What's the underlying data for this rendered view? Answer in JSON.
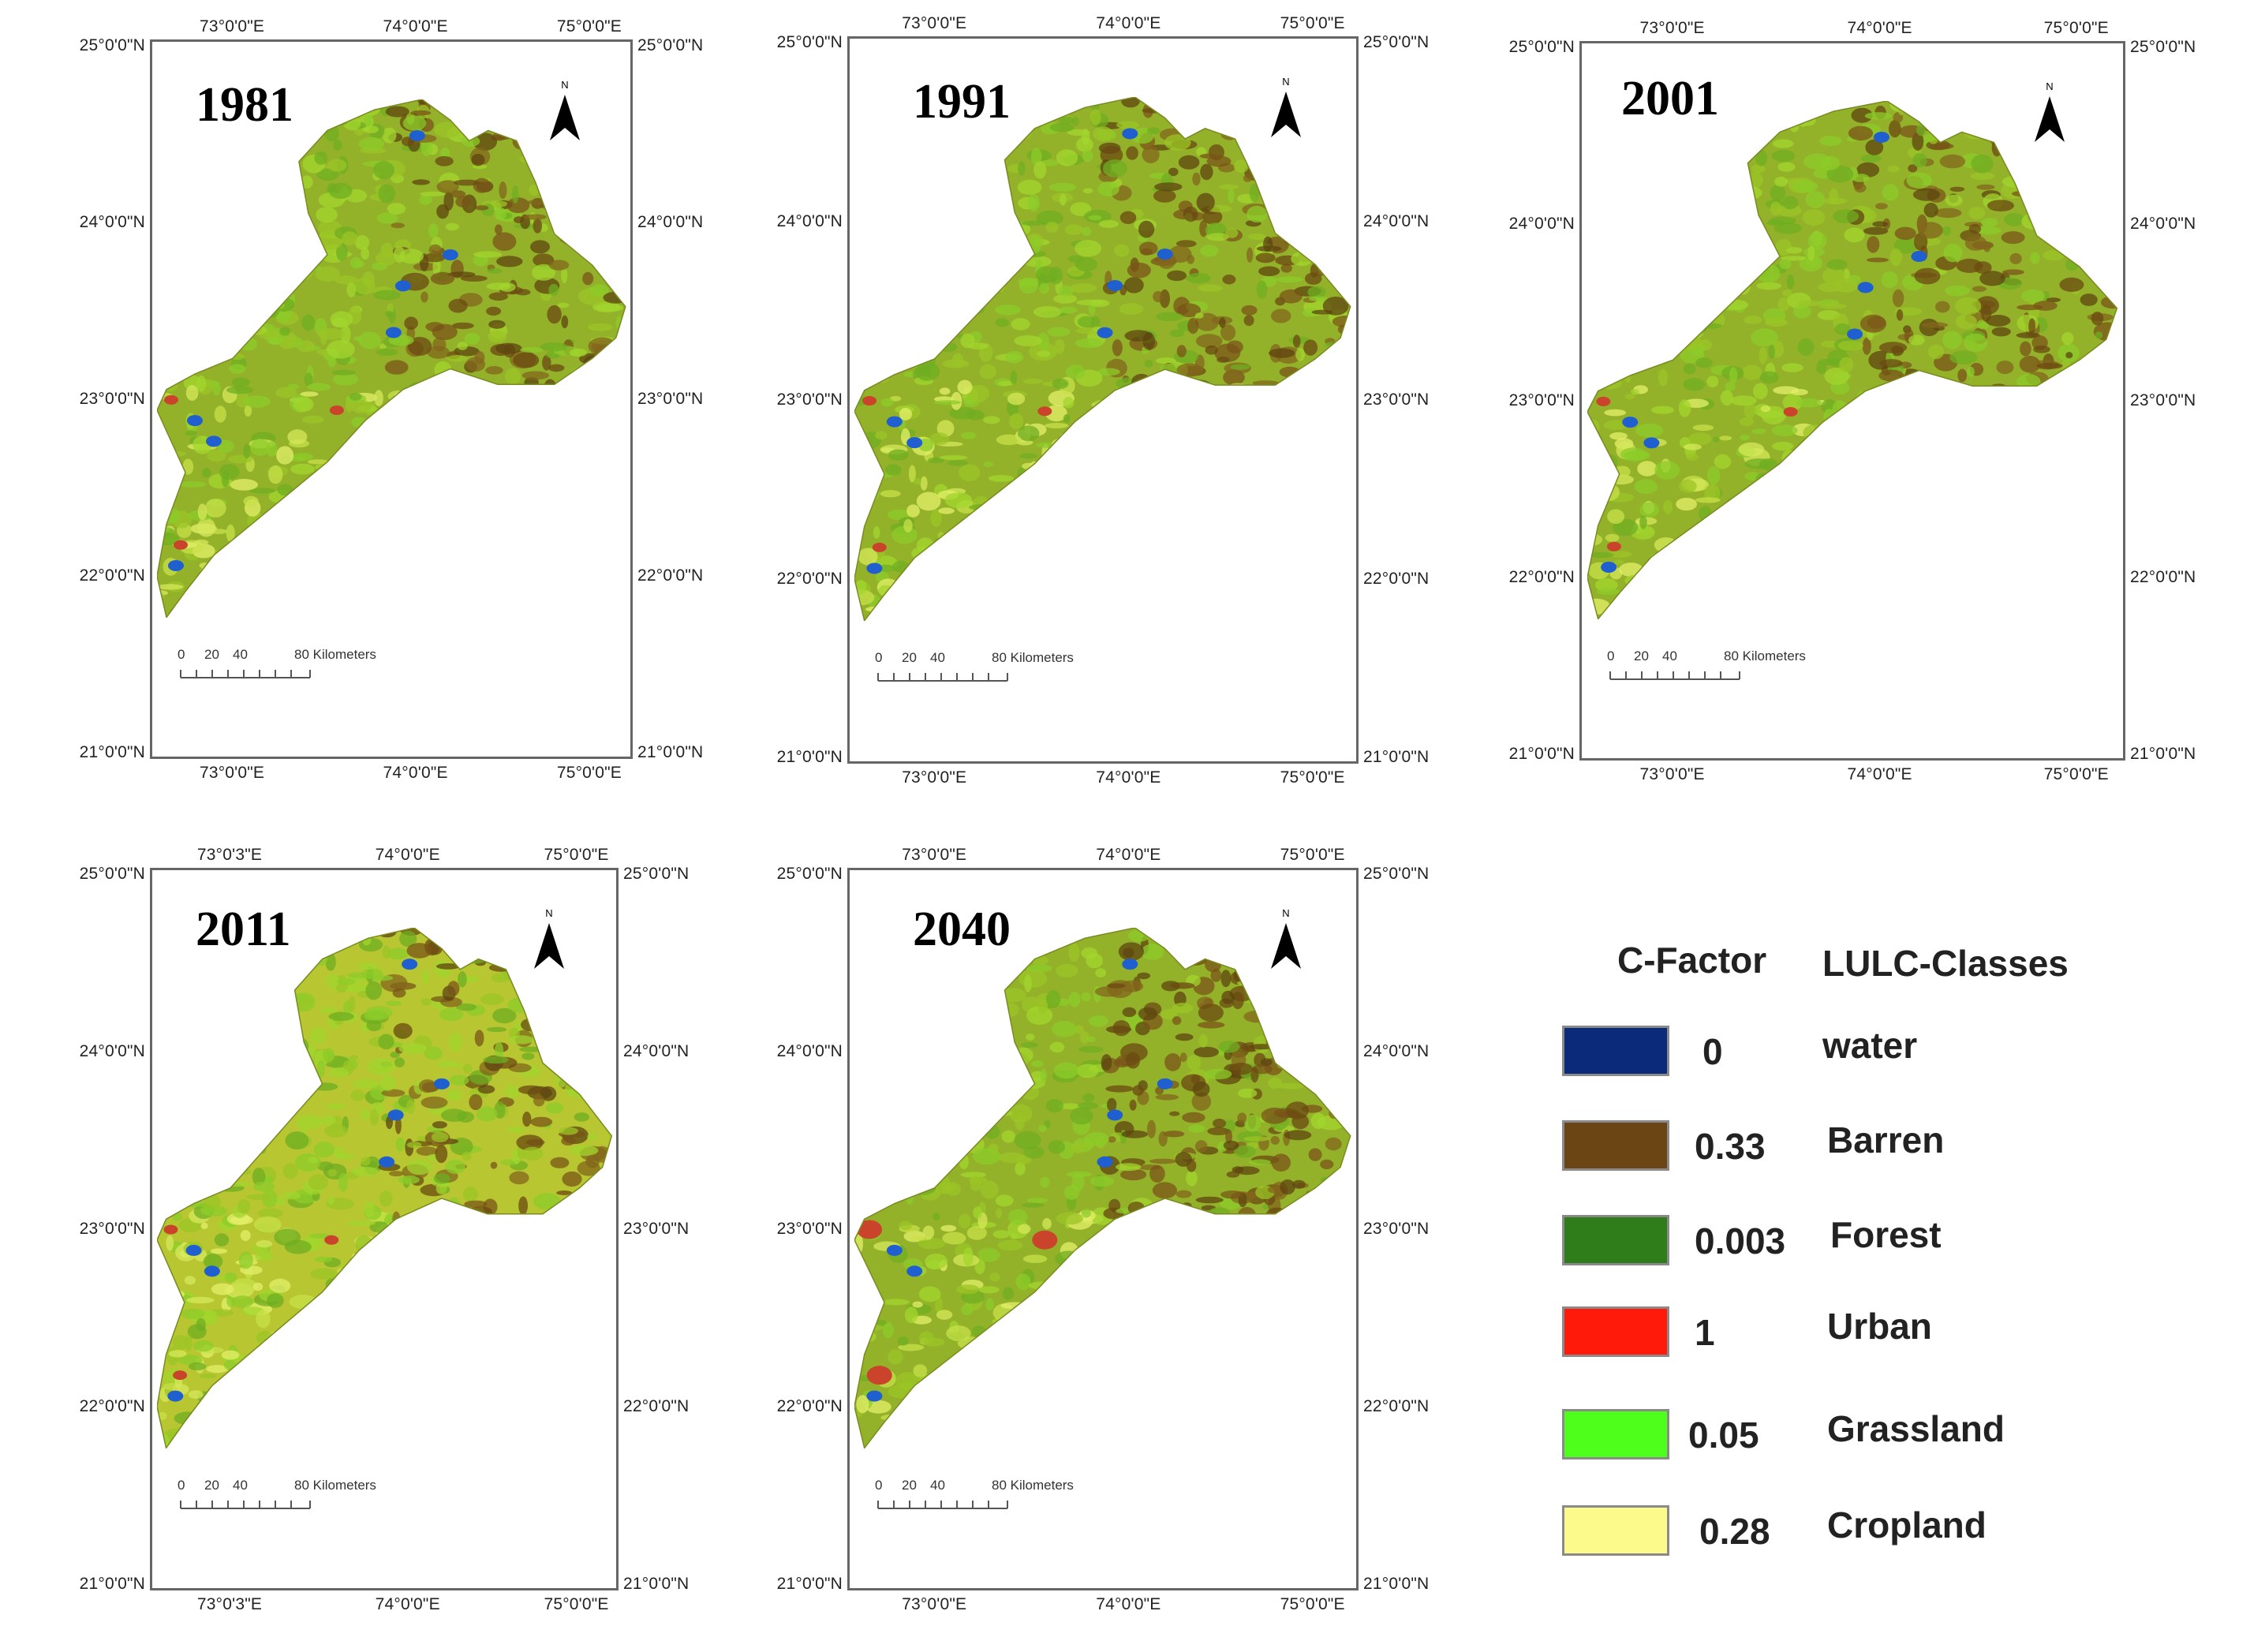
{
  "panels": [
    {
      "year": "1981",
      "lat": [
        "25°0'0\"N",
        "24°0'0\"N",
        "23°0'0\"N",
        "22°0'0\"N",
        "21°0'0\"N"
      ],
      "lon_top": [
        "73°0'0\"E",
        "74°0'0\"E",
        "75°0'0\"E"
      ],
      "lon_bottom": [
        "73°0'0\"E",
        "74°0'0\"E",
        "75°0'0\"E"
      ]
    },
    {
      "year": "1991",
      "lat": [
        "25°0'0\"N",
        "24°0'0\"N",
        "23°0'0\"N",
        "22°0'0\"N",
        "21°0'0\"N"
      ],
      "lon_top": [
        "73°0'0\"E",
        "74°0'0\"E",
        "75°0'0\"E"
      ],
      "lon_bottom": [
        "73°0'0\"E",
        "74°0'0\"E",
        "75°0'0\"E"
      ]
    },
    {
      "year": "2001",
      "lat": [
        "25°0'0\"N",
        "24°0'0\"N",
        "23°0'0\"N",
        "22°0'0\"N",
        "21°0'0\"N"
      ],
      "lon_top": [
        "73°0'0\"E",
        "74°0'0\"E",
        "75°0'0\"E"
      ],
      "lon_bottom": [
        "73°0'0\"E",
        "74°0'0\"E",
        "75°0'0\"E"
      ]
    },
    {
      "year": "2011",
      "lat": [
        "25°0'0\"N",
        "24°0'0\"N",
        "23°0'0\"N",
        "22°0'0\"N",
        "21°0'0\"N"
      ],
      "lon_top": [
        "73°0'3\"E",
        "74°0'0\"E",
        "75°0'0\"E"
      ],
      "lon_bottom": [
        "73°0'3\"E",
        "74°0'0\"E",
        "75°0'0\"E"
      ]
    },
    {
      "year": "2040",
      "lat": [
        "25°0'0\"N",
        "24°0'0\"N",
        "23°0'0\"N",
        "22°0'0\"N",
        "21°0'0\"N"
      ],
      "lon_top": [
        "73°0'0\"E",
        "74°0'0\"E",
        "75°0'0\"E"
      ],
      "lon_bottom": [
        "73°0'0\"E",
        "74°0'0\"E",
        "75°0'0\"E"
      ]
    }
  ],
  "north_label": "N",
  "scale": {
    "ticks": [
      "0",
      "20",
      "40"
    ],
    "end": "80 Kilometers"
  },
  "legend": {
    "header_factor": "C-Factor",
    "header_classes": "LULC-Classes",
    "items": [
      {
        "value": "0",
        "class": "water",
        "color": "#0b2b7a"
      },
      {
        "value": "0.33",
        "class": "Barren",
        "color": "#6b4513"
      },
      {
        "value": "0.003",
        "class": "Forest",
        "color": "#2f7d1a"
      },
      {
        "value": "1",
        "class": "Urban",
        "color": "#ff1a0a"
      },
      {
        "value": "0.05",
        "class": "Grassland",
        "color": "#4dff1a"
      },
      {
        "value": "0.28",
        "class": "Cropland",
        "color": "#fbfa8a"
      }
    ]
  }
}
